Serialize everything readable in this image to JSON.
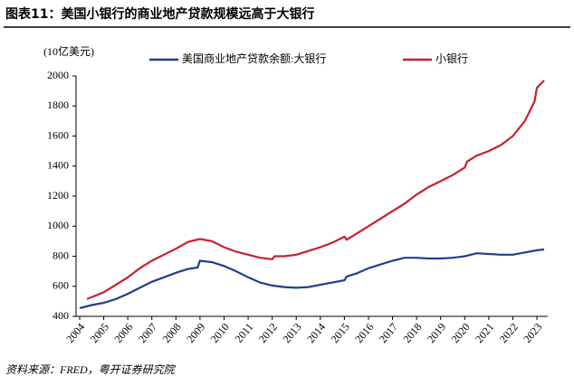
{
  "chart_data": {
    "type": "line",
    "title": "图表11：美国小银行的商业地产贷款规模远高于大银行",
    "y_label": "(10亿美元)",
    "source": "资料来源：FRED，粤开证券研究院",
    "legend": "top",
    "xlim": [
      2003.85,
      2023.45
    ],
    "xticks": [
      2004,
      2005,
      2006,
      2007,
      2008,
      2009,
      2010,
      2011,
      2012,
      2013,
      2014,
      2015,
      2016,
      2017,
      2018,
      2019,
      2020,
      2021,
      2022,
      2023
    ],
    "ylim": [
      400,
      2000
    ],
    "yticks": [
      400,
      600,
      800,
      1000,
      1200,
      1400,
      1600,
      1800,
      2000
    ],
    "series": [
      {
        "name": "美国商业地产贷款余额:大银行",
        "color": "#1f3f8f",
        "x": [
          2004,
          2004.5,
          2005,
          2005.5,
          2006,
          2006.5,
          2007,
          2007.5,
          2008,
          2008.5,
          2008.9,
          2009,
          2009.5,
          2010,
          2010.5,
          2011,
          2011.5,
          2012,
          2012.5,
          2013,
          2013.5,
          2014,
          2014.5,
          2015,
          2015.1,
          2015.5,
          2016,
          2016.5,
          2017,
          2017.5,
          2018,
          2018.5,
          2019,
          2019.5,
          2020,
          2020.5,
          2021,
          2021.5,
          2022,
          2022.5,
          2023,
          2023.3
        ],
        "values": [
          455,
          475,
          490,
          515,
          550,
          590,
          630,
          660,
          690,
          715,
          725,
          770,
          760,
          735,
          700,
          660,
          625,
          605,
          595,
          590,
          595,
          610,
          625,
          640,
          665,
          685,
          720,
          745,
          770,
          790,
          790,
          785,
          785,
          790,
          800,
          820,
          815,
          810,
          810,
          825,
          840,
          845
        ]
      },
      {
        "name": "小银行",
        "color": "#c8202f",
        "x": [
          2004.3,
          2005,
          2005.5,
          2006,
          2006.5,
          2007,
          2007.5,
          2008,
          2008.5,
          2009,
          2009.5,
          2010,
          2010.5,
          2011,
          2011.5,
          2012,
          2012.1,
          2012.5,
          2013,
          2013.5,
          2014,
          2014.5,
          2015,
          2015.1,
          2015.5,
          2016,
          2016.5,
          2017,
          2017.5,
          2018,
          2018.5,
          2019,
          2019.5,
          2020,
          2020.1,
          2020.5,
          2021,
          2021.5,
          2022,
          2022.5,
          2022.9,
          2023,
          2023.3
        ],
        "values": [
          515,
          560,
          610,
          660,
          720,
          770,
          810,
          850,
          895,
          915,
          900,
          860,
          830,
          810,
          790,
          780,
          800,
          800,
          810,
          835,
          860,
          890,
          930,
          910,
          950,
          1000,
          1050,
          1100,
          1150,
          1210,
          1260,
          1300,
          1340,
          1390,
          1430,
          1470,
          1500,
          1540,
          1600,
          1700,
          1830,
          1920,
          1970
        ]
      }
    ]
  }
}
